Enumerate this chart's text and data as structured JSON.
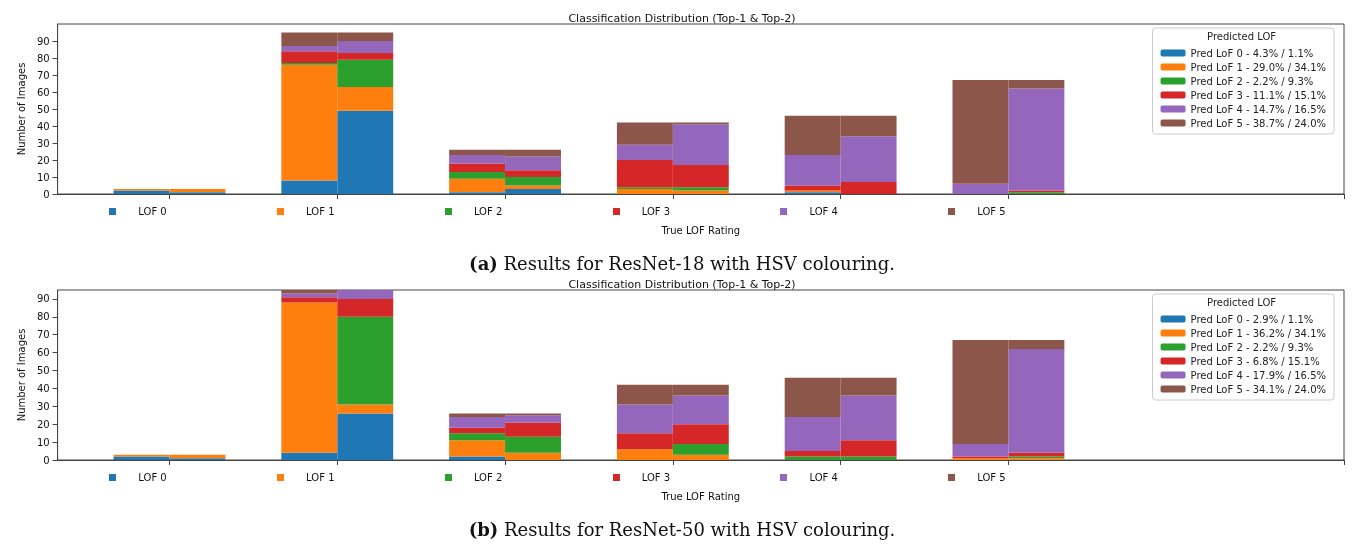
{
  "chart_data": [
    {
      "type": "bar",
      "title": "Classification Distribution (Top-1 & Top-2)",
      "xlabel": "True LOF Rating",
      "ylabel": "Number of Images",
      "legend_title": "Predicted LOF",
      "annotations": [
        "(a) Results for ResNet-18 with HSV colouring."
      ],
      "categories": [
        null,
        "LOF 0",
        null,
        null,
        "LOF 1",
        null,
        null,
        "LOF 2",
        null,
        null,
        "LOF 3",
        null,
        null,
        "LOF 4",
        null,
        null,
        "LOF 5",
        null,
        null,
        null,
        null,
        null,
        null
      ],
      "stacked": true,
      "ylim": [
        0,
        100
      ],
      "yticks": [
        0,
        10,
        20,
        30,
        40,
        50,
        60,
        70,
        80,
        90
      ],
      "grid": false,
      "legend": "top right",
      "series": [
        {
          "name": "Pred LoF 0 - 4.3% / 1.1%",
          "color": "#1f77b4",
          "values": [
            null,
            2,
            1,
            null,
            8,
            49,
            null,
            1,
            3,
            null,
            0,
            0,
            null,
            1,
            0,
            null,
            0,
            0,
            null,
            null,
            null,
            null,
            null
          ]
        },
        {
          "name": "Pred LoF 1 - 29.0% / 34.1%",
          "color": "#ff7f0e",
          "values": [
            null,
            1,
            2,
            null,
            68,
            14,
            null,
            8,
            2,
            null,
            3,
            2,
            null,
            1,
            0,
            null,
            0,
            0,
            null,
            null,
            null,
            null,
            null
          ]
        },
        {
          "name": "Pred LoF 2 - 2.2% / 9.3%",
          "color": "#2ca02c",
          "values": [
            null,
            0,
            0,
            null,
            1,
            16,
            null,
            4,
            5,
            null,
            1,
            2,
            null,
            0,
            0,
            null,
            0,
            1,
            null,
            null,
            null,
            null,
            null
          ]
        },
        {
          "name": "Pred LoF 3 - 11.1% / 15.1%",
          "color": "#d62728",
          "values": [
            null,
            0,
            0,
            null,
            7,
            4,
            null,
            5,
            4,
            null,
            16,
            13,
            null,
            3,
            7,
            null,
            0,
            1,
            null,
            null,
            null,
            null,
            null
          ]
        },
        {
          "name": "Pred LoF 4 - 14.7% / 16.5%",
          "color": "#9467bd",
          "values": [
            null,
            0,
            0,
            null,
            3,
            7,
            null,
            5,
            8,
            null,
            9,
            24,
            null,
            18,
            27,
            null,
            6,
            60,
            null,
            null,
            null,
            null,
            null
          ]
        },
        {
          "name": "Pred LoF 5 - 38.7% / 24.0%",
          "color": "#8c564b",
          "values": [
            null,
            0,
            0,
            null,
            8,
            5,
            null,
            3,
            4,
            null,
            13,
            1,
            null,
            23,
            12,
            null,
            61,
            5,
            null,
            null,
            null,
            null,
            null
          ]
        }
      ]
    },
    {
      "type": "bar",
      "title": "Classification Distribution (Top-1 & Top-2)",
      "xlabel": "True LOF Rating",
      "ylabel": "Number of Images",
      "legend_title": "Predicted LOF",
      "annotations": [
        "(b) Results for ResNet-50 with HSV colouring."
      ],
      "categories": [
        null,
        "LOF 0",
        null,
        null,
        "LOF 1",
        null,
        null,
        "LOF 2",
        null,
        null,
        "LOF 3",
        null,
        null,
        "LOF 4",
        null,
        null,
        "LOF 5",
        null,
        null,
        null,
        null,
        null,
        null
      ],
      "stacked": true,
      "ylim": [
        0,
        95
      ],
      "yticks": [
        0,
        10,
        20,
        30,
        40,
        50,
        60,
        70,
        80,
        90
      ],
      "grid": false,
      "legend": "top right",
      "series": [
        {
          "name": "Pred LoF 0 - 2.9% / 1.1%",
          "color": "#1f77b4",
          "values": [
            null,
            2,
            1,
            null,
            4,
            26,
            null,
            2,
            0,
            null,
            0,
            0,
            null,
            0,
            0,
            null,
            0,
            0,
            null,
            null,
            null,
            null,
            null
          ]
        },
        {
          "name": "Pred LoF 1 - 36.2% / 34.1%",
          "color": "#ff7f0e",
          "values": [
            null,
            1,
            2,
            null,
            84,
            5,
            null,
            9,
            4,
            null,
            6,
            3,
            null,
            0,
            0,
            null,
            1,
            1,
            null,
            null,
            null,
            null,
            null
          ]
        },
        {
          "name": "Pred LoF 2 - 2.2% / 9.3%",
          "color": "#2ca02c",
          "values": [
            null,
            0,
            0,
            null,
            0,
            49,
            null,
            4,
            9,
            null,
            0,
            6,
            null,
            2,
            2,
            null,
            0,
            1,
            null,
            null,
            null,
            null,
            null
          ]
        },
        {
          "name": "Pred LoF 3 - 6.8% / 15.1%",
          "color": "#d62728",
          "values": [
            null,
            0,
            0,
            null,
            3,
            10,
            null,
            3,
            8,
            null,
            9,
            11,
            null,
            3,
            9,
            null,
            1,
            2,
            null,
            null,
            null,
            null,
            null
          ]
        },
        {
          "name": "Pred LoF 4 - 17.9% / 16.5%",
          "color": "#9467bd",
          "values": [
            null,
            0,
            0,
            null,
            2,
            5,
            null,
            6,
            4,
            null,
            16,
            16,
            null,
            19,
            25,
            null,
            7,
            58,
            null,
            null,
            null,
            null,
            null
          ]
        },
        {
          "name": "Pred LoF 5 - 34.1% / 24.0%",
          "color": "#8c564b",
          "values": [
            null,
            0,
            0,
            null,
            2,
            0,
            null,
            2,
            1,
            null,
            11,
            6,
            null,
            22,
            10,
            null,
            58,
            5,
            null,
            null,
            null,
            null,
            null
          ]
        }
      ]
    }
  ]
}
